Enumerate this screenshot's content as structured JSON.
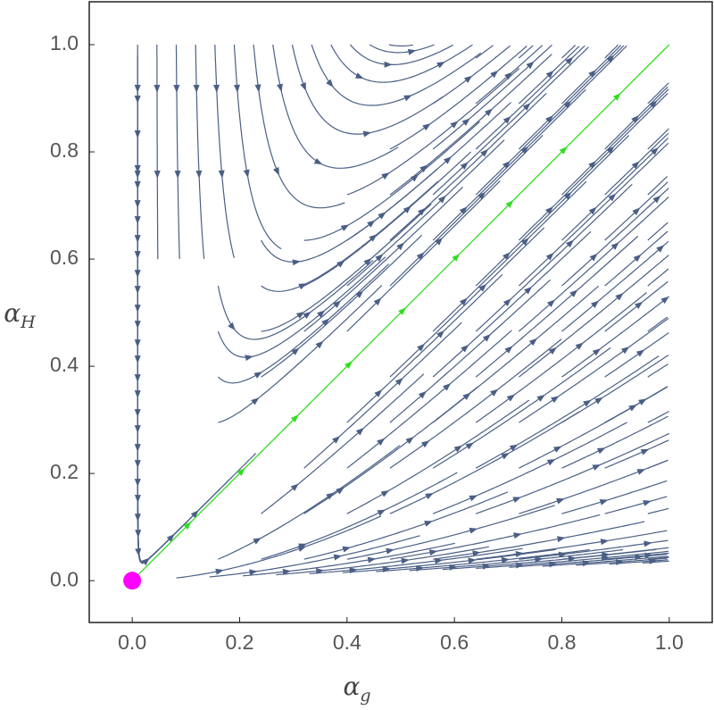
{
  "chart_data": {
    "type": "streamplot",
    "x_label": {
      "symbol": "α",
      "subscript": "g"
    },
    "y_label": {
      "symbol": "α",
      "subscript": "H"
    },
    "xlim": [
      -0.08,
      1.08
    ],
    "ylim": [
      -0.078,
      1.08
    ],
    "xticks": [
      {
        "value": 0,
        "label": "0.0"
      },
      {
        "value": 0.2,
        "label": "0.2"
      },
      {
        "value": 0.4,
        "label": "0.4"
      },
      {
        "value": 0.6,
        "label": "0.6"
      },
      {
        "value": 0.8,
        "label": "0.8"
      },
      {
        "value": 1,
        "label": "1.0"
      }
    ],
    "yticks": [
      {
        "value": 0,
        "label": "0.0"
      },
      {
        "value": 0.2,
        "label": "0.2"
      },
      {
        "value": 0.4,
        "label": "0.4"
      },
      {
        "value": 0.6,
        "label": "0.6"
      },
      {
        "value": 0.8,
        "label": "0.8"
      },
      {
        "value": 1,
        "label": "1.0"
      }
    ],
    "stream_color": "#4a5f85",
    "highlight": {
      "x": [
        0,
        1
      ],
      "y": [
        0,
        1
      ],
      "color": "#33dd22"
    },
    "point": {
      "x": 0,
      "y": 0,
      "color": "#ff00ff"
    }
  }
}
